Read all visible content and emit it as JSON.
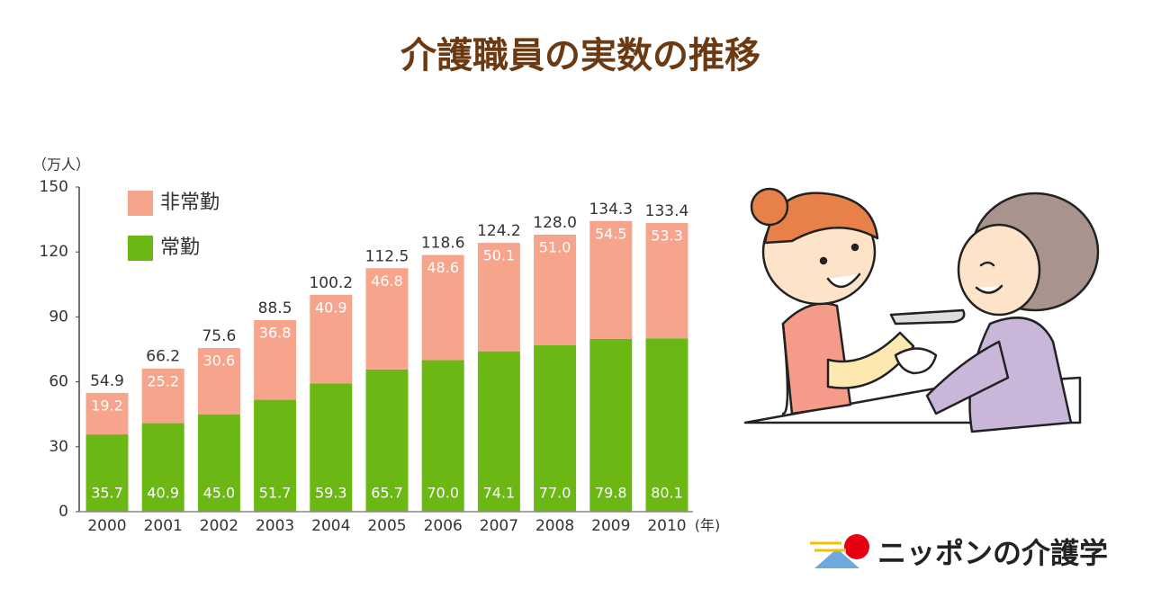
{
  "chart_data": {
    "type": "stacked_bar",
    "title": "介護職員の実数の推移",
    "y_label": "（万人）",
    "x_label": "(年)",
    "categories": [
      "2000",
      "2001",
      "2002",
      "2003",
      "2004",
      "2005",
      "2006",
      "2007",
      "2008",
      "2009",
      "2010"
    ],
    "series": [
      {
        "name": "常勤",
        "color": "#6bb713",
        "values": [
          35.7,
          40.9,
          45.0,
          51.7,
          59.3,
          65.7,
          70.0,
          74.1,
          77.0,
          79.8,
          80.1
        ],
        "value_labels": [
          "35.7",
          "40.9",
          "45.0",
          "51.7",
          "59.3",
          "65.7",
          "70.0",
          "74.1",
          "77.0",
          "79.8",
          "80.1"
        ]
      },
      {
        "name": "非常勤",
        "color": "#f7a48c",
        "values": [
          19.2,
          25.2,
          30.6,
          36.8,
          40.9,
          46.8,
          48.6,
          50.1,
          51.0,
          54.5,
          53.3
        ],
        "value_labels": [
          "19.2",
          "25.2",
          "30.6",
          "36.8",
          "40.9",
          "46.8",
          "48.6",
          "50.1",
          "51.0",
          "54.5",
          "53.3"
        ]
      }
    ],
    "totals": [
      54.9,
      66.2,
      75.6,
      88.5,
      100.2,
      112.5,
      118.6,
      124.2,
      128.0,
      134.3,
      133.4
    ],
    "total_labels": [
      "54.9",
      "66.2",
      "75.6",
      "88.5",
      "100.2",
      "112.5",
      "118.6",
      "124.2",
      "128.0",
      "134.3",
      "133.4"
    ],
    "ylim": [
      0,
      150
    ],
    "yticks": [
      0,
      30,
      60,
      90,
      120,
      150
    ],
    "logo": "ニッポンの介護学"
  }
}
